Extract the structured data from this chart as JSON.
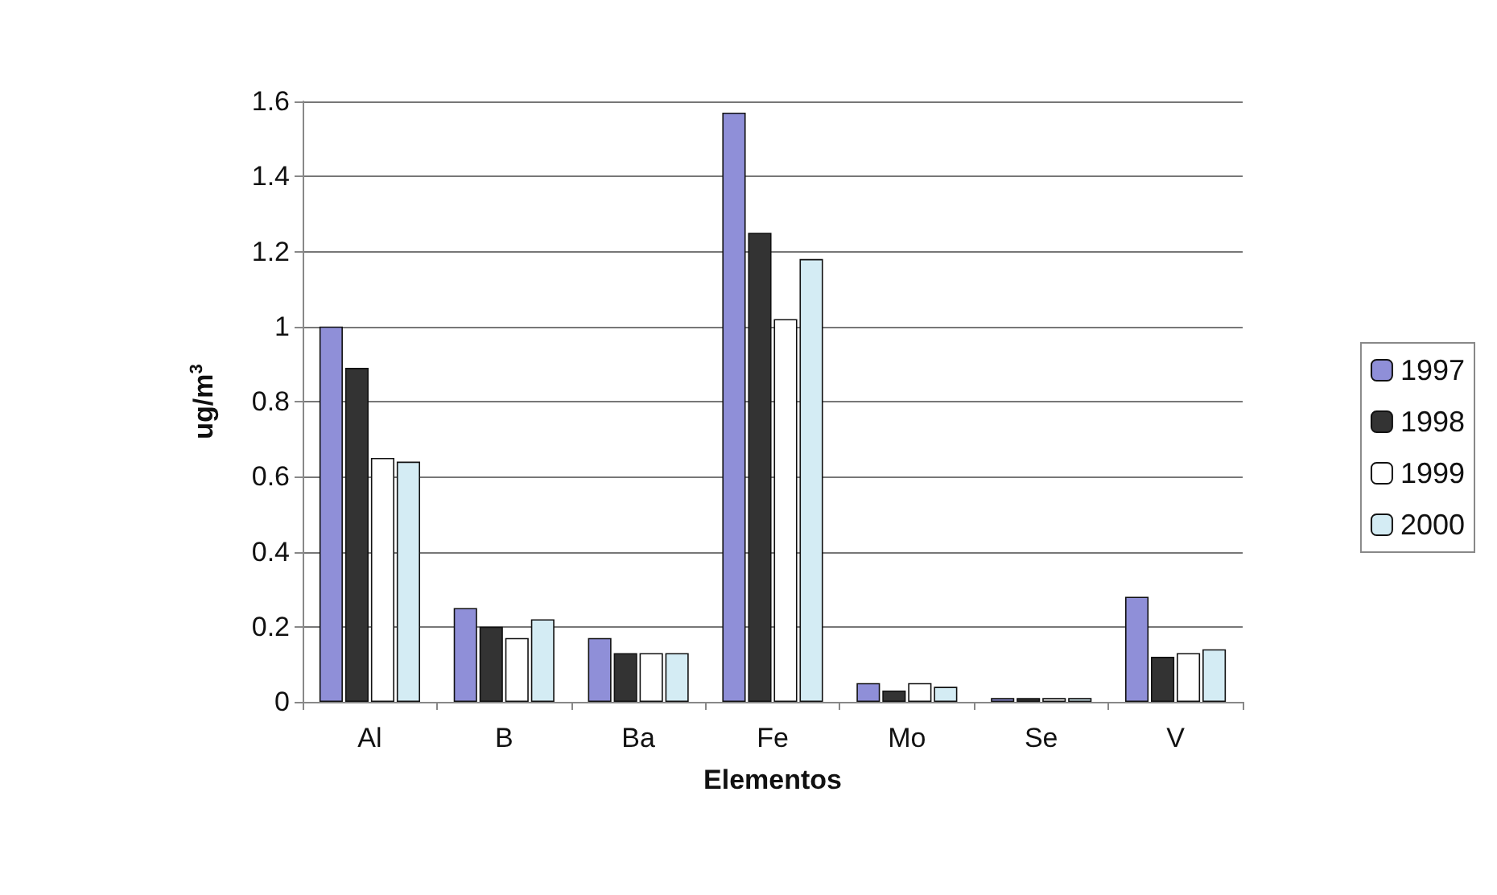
{
  "chart_data": {
    "type": "bar",
    "xlabel": "Elementos",
    "ylabel": "ug/m$^{3}$",
    "categories": [
      "Al",
      "B",
      "Ba",
      "Fe",
      "Mo",
      "Se",
      "V"
    ],
    "series": [
      {
        "name": "1997",
        "color": "#8f8fd8",
        "values": [
          1.0,
          0.25,
          0.17,
          1.57,
          0.05,
          0.01,
          0.28
        ]
      },
      {
        "name": "1998",
        "color": "#333333",
        "values": [
          0.89,
          0.2,
          0.13,
          1.25,
          0.03,
          0.01,
          0.12
        ]
      },
      {
        "name": "1999",
        "color": "#ffffff",
        "values": [
          0.65,
          0.17,
          0.13,
          1.02,
          0.05,
          0.01,
          0.13
        ]
      },
      {
        "name": "2000",
        "color": "#d4ecf4",
        "values": [
          0.64,
          0.22,
          0.13,
          1.18,
          0.04,
          0.01,
          0.14
        ]
      }
    ],
    "ylim": [
      0,
      1.6
    ],
    "yticks": [
      0,
      0.2,
      0.4,
      0.6,
      0.8,
      1,
      1.2,
      1.4,
      1.6
    ],
    "grid": "y",
    "legend": "right"
  }
}
